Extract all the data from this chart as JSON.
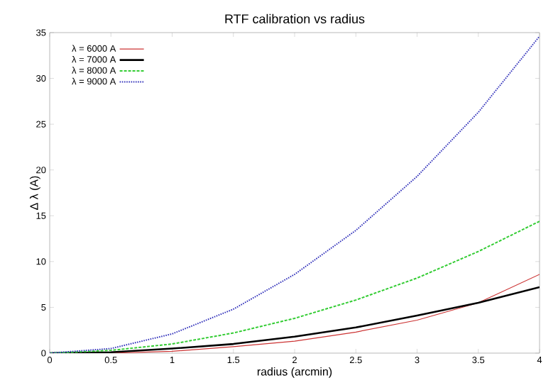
{
  "chart_data": {
    "type": "line",
    "title": "RTF calibration vs radius",
    "xlabel": "radius (arcmin)",
    "ylabel": "Δ λ (A)",
    "x": [
      0,
      0.5,
      1,
      1.5,
      2,
      2.5,
      3,
      3.5,
      4
    ],
    "series": [
      {
        "name": "λ = 6000 A",
        "color": "#cc3333",
        "line_style": "solid",
        "values": [
          0,
          0,
          0.2,
          0.7,
          1.3,
          2.3,
          3.6,
          5.5,
          8.6
        ]
      },
      {
        "name": "λ = 7000 A",
        "color": "#000000",
        "line_style": "solid",
        "values": [
          0,
          0.1,
          0.5,
          1.0,
          1.8,
          2.8,
          4.1,
          5.5,
          7.2
        ]
      },
      {
        "name": "λ = 8000 A",
        "color": "#33cc33",
        "line_style": "dashed",
        "values": [
          0,
          0.3,
          1.0,
          2.2,
          3.8,
          5.8,
          8.2,
          11.1,
          14.4
        ]
      },
      {
        "name": "λ = 9000 A",
        "color": "#3333bb",
        "line_style": "dotted",
        "values": [
          0,
          0.5,
          2.1,
          4.8,
          8.6,
          13.4,
          19.3,
          26.3,
          34.6
        ]
      }
    ],
    "xlim": [
      0,
      4
    ],
    "ylim": [
      0,
      35
    ],
    "xticks": [
      0,
      0.5,
      1,
      1.5,
      2,
      2.5,
      3,
      3.5,
      4
    ],
    "yticks": [
      0,
      5,
      10,
      15,
      20,
      25,
      30,
      35
    ],
    "grid": false,
    "legend": "top left",
    "marker": "none"
  }
}
